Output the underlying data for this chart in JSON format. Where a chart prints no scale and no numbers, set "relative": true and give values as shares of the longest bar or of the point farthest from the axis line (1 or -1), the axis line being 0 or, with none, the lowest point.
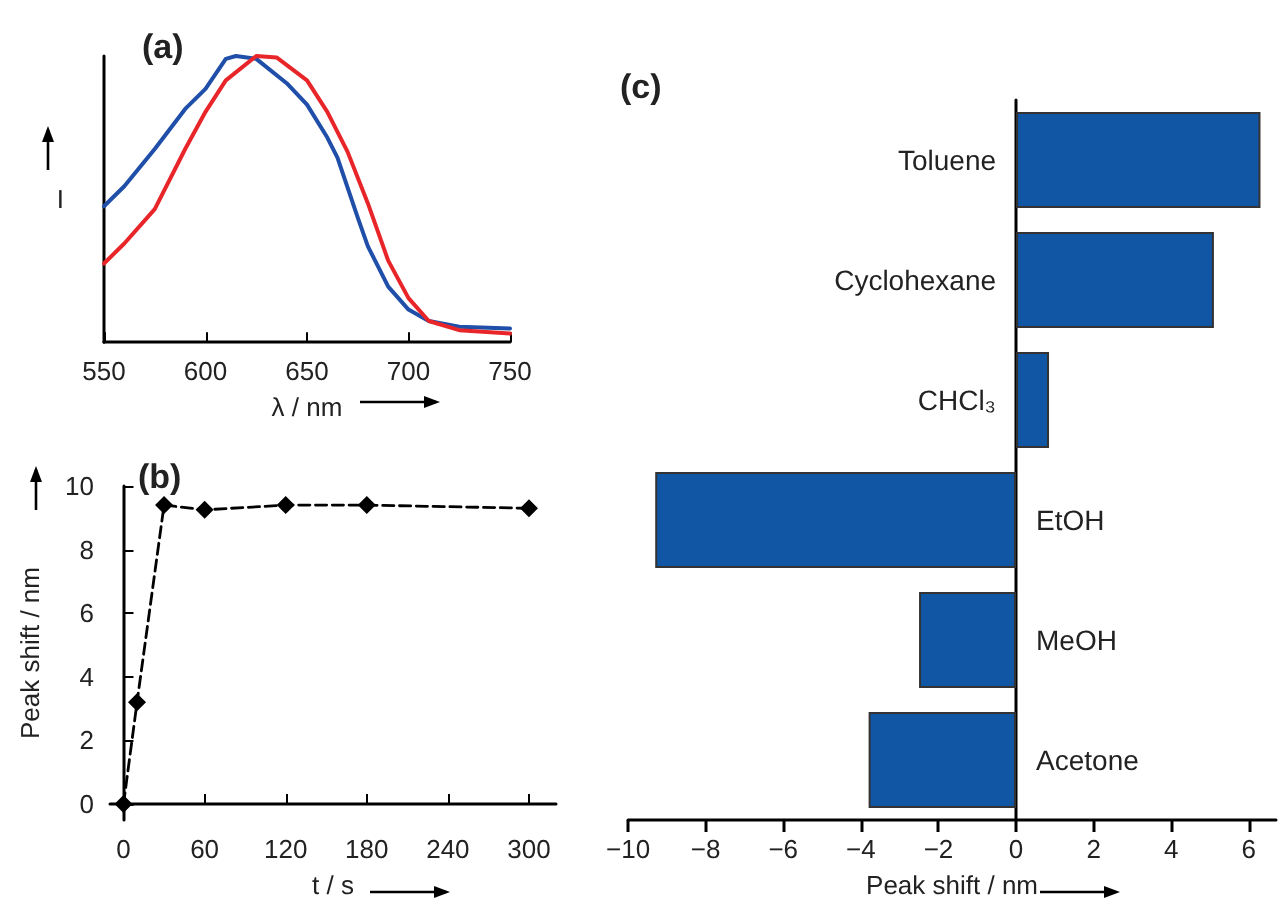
{
  "chart_data": [
    {
      "type": "line",
      "title": "(a)",
      "xlabel": "λ / nm",
      "ylabel": "I",
      "relative": true,
      "tick_labels": "x",
      "xlim": [
        550,
        750
      ],
      "xticks": [
        550,
        600,
        650,
        700,
        750
      ],
      "series": [
        {
          "color": "#1f4fa8",
          "x": [
            550,
            560,
            575,
            590,
            600,
            610,
            615,
            625,
            640,
            650,
            660,
            665,
            675,
            680,
            690,
            700,
            710,
            725,
            750
          ],
          "values": [
            0.475,
            0.545,
            0.675,
            0.815,
            0.885,
            0.99,
            1,
            0.99,
            0.905,
            0.83,
            0.715,
            0.645,
            0.435,
            0.335,
            0.194,
            0.114,
            0.074,
            0.054,
            0.048
          ]
        },
        {
          "color": "#e8262a",
          "x": [
            550,
            560,
            575,
            590,
            600,
            610,
            625,
            635,
            650,
            660,
            670,
            680,
            690,
            700,
            710,
            725,
            750
          ],
          "values": [
            0.275,
            0.345,
            0.465,
            0.675,
            0.805,
            0.915,
            1,
            0.995,
            0.915,
            0.805,
            0.665,
            0.485,
            0.285,
            0.154,
            0.074,
            0.042,
            0.03
          ]
        }
      ]
    },
    {
      "type": "line",
      "title": "(b)",
      "xlabel": "t / s",
      "ylabel": "Peak shift / nm",
      "marker": "diamond",
      "line_style": "dashed",
      "xlim": [
        -10,
        320
      ],
      "xticks": [
        0,
        60,
        120,
        180,
        240,
        300
      ],
      "ylim": [
        -0.5,
        10
      ],
      "yticks": [
        0,
        2,
        4,
        6,
        8,
        10
      ],
      "series": [
        {
          "color": "#000000",
          "x": [
            0,
            10,
            30,
            60,
            120,
            180,
            300
          ],
          "values": [
            0,
            3.2,
            9.4,
            9.25,
            9.4,
            9.4,
            9.3
          ]
        }
      ]
    },
    {
      "type": "bar",
      "orientation": "horizontal",
      "title": "(c)",
      "xlabel": "Peak shift / nm",
      "categories": [
        "Toluene",
        "Cyclohexane",
        "CHCl₃",
        "EtOH",
        "MeOH",
        "Acetone"
      ],
      "values": [
        6.3,
        5.1,
        0.85,
        -9.3,
        -2.5,
        -3.8
      ],
      "color": "#1155a5",
      "xlim": [
        -10,
        6.7
      ],
      "xticks": [
        {
          "value": -10,
          "label": "−10"
        },
        {
          "value": -8,
          "label": "−8"
        },
        {
          "value": -6,
          "label": "−6"
        },
        {
          "value": -4,
          "label": "−4"
        },
        {
          "value": -2,
          "label": "−2"
        },
        0,
        2,
        4,
        6
      ]
    }
  ]
}
